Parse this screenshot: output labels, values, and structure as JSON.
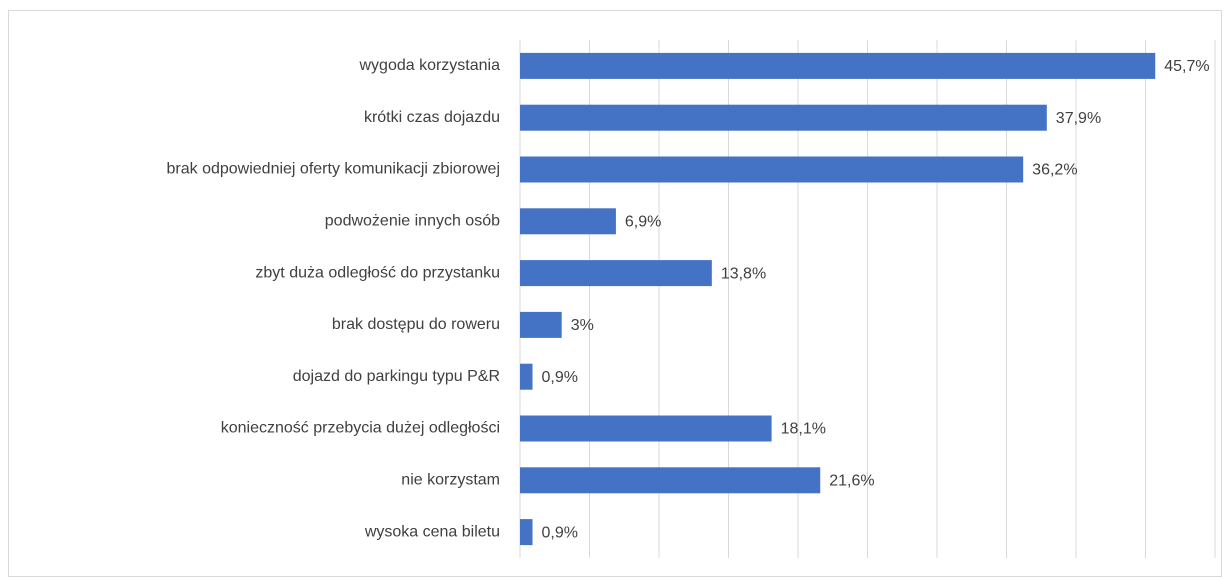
{
  "chart_data": {
    "type": "bar",
    "orientation": "horizontal",
    "categories": [
      "wygoda korzystania",
      "krótki czas dojazdu",
      "brak odpowiedniej oferty komunikacji zbiorowej",
      "podwożenie innych osób",
      "zbyt duża odległość do przystanku",
      "brak dostępu do roweru",
      "dojazd do parkingu typu P&R",
      "konieczność przebycia dużej odległości",
      "nie korzystam",
      "wysoka cena biletu"
    ],
    "values": [
      45.7,
      37.9,
      36.2,
      6.9,
      13.8,
      3,
      0.9,
      18.1,
      21.6,
      0.9
    ],
    "value_labels": [
      "45,7%",
      "37,9%",
      "36,2%",
      "6,9%",
      "13,8%",
      "3%",
      "0,9%",
      "18,1%",
      "21,6%",
      "0,9%"
    ],
    "color": "#4472c4",
    "xlim": [
      0,
      50
    ],
    "xticks": [
      0,
      5,
      10,
      15,
      20,
      25,
      30,
      35,
      40,
      45,
      50
    ],
    "grid": true
  }
}
